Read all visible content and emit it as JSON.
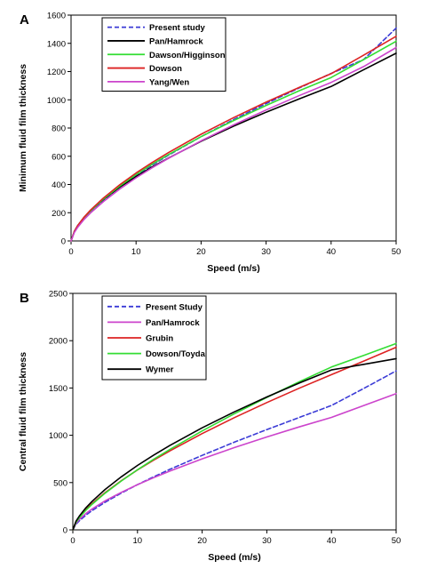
{
  "chart_data": [
    {
      "type": "line",
      "panel_label": "A",
      "xlabel": "Speed (m/s)",
      "ylabel": "Minimum fluid film thickness",
      "xlim": [
        0,
        50
      ],
      "ylim": [
        0,
        1600
      ],
      "xticks": [
        0,
        10,
        20,
        30,
        40,
        50
      ],
      "yticks": [
        0,
        200,
        400,
        600,
        800,
        1000,
        1200,
        1400,
        1600
      ],
      "grid": false,
      "legend_position": "top-left",
      "x": [
        0,
        0.5,
        1,
        2,
        3,
        5,
        7.5,
        10,
        12.5,
        15,
        20,
        25,
        30,
        35,
        40,
        45,
        50
      ],
      "series": [
        {
          "name": "Present study",
          "color": "#3b3bd6",
          "style": "dashed",
          "values": [
            0,
            63,
            100,
            158,
            207,
            291,
            382,
            463,
            538,
            608,
            739,
            860,
            973,
            1082,
            1187,
            1285,
            1508
          ]
        },
        {
          "name": "Pan/Hamrock",
          "color": "#000000",
          "style": "solid",
          "values": [
            0,
            68,
            107,
            167,
            215,
            295,
            381,
            456,
            525,
            588,
            706,
            813,
            912,
            1005,
            1094,
            1213,
            1330
          ]
        },
        {
          "name": "Dawson/Higginson",
          "color": "#33dd33",
          "style": "solid",
          "values": [
            0,
            66,
            105,
            165,
            214,
            298,
            389,
            470,
            544,
            612,
            739,
            853,
            960,
            1062,
            1158,
            1285,
            1415
          ]
        },
        {
          "name": "Dowson",
          "color": "#dd2222",
          "style": "solid",
          "values": [
            0,
            67,
            107,
            168,
            219,
            305,
            398,
            481,
            556,
            626,
            756,
            874,
            983,
            1086,
            1185,
            1316,
            1450
          ]
        },
        {
          "name": "Yang/Wen",
          "color": "#cc44cc",
          "style": "solid",
          "values": [
            0,
            60,
            95,
            152,
            199,
            280,
            368,
            447,
            519,
            586,
            709,
            822,
            928,
            1028,
            1123,
            1235,
            1370
          ]
        }
      ]
    },
    {
      "type": "line",
      "panel_label": "B",
      "xlabel": "Speed (m/s)",
      "ylabel": "Central fluid film thickness",
      "xlim": [
        0,
        50
      ],
      "ylim": [
        0,
        2500
      ],
      "xticks": [
        0,
        10,
        20,
        30,
        40,
        50
      ],
      "yticks": [
        0,
        500,
        1000,
        1500,
        2000,
        2500
      ],
      "grid": false,
      "legend_position": "top-left",
      "x": [
        0,
        0.5,
        1,
        2,
        3,
        5,
        7.5,
        10,
        12.5,
        15,
        20,
        25,
        30,
        35,
        40,
        45,
        50
      ],
      "series": [
        {
          "name": "Present Study",
          "color": "#3b3bd6",
          "style": "dashed",
          "values": [
            0,
            60,
            96,
            155,
            205,
            292,
            389,
            478,
            561,
            640,
            788,
            928,
            1060,
            1188,
            1315,
            1495,
            1680
          ]
        },
        {
          "name": "Pan/Hamrock",
          "color": "#cc44cc",
          "style": "solid",
          "values": [
            0,
            70,
            110,
            172,
            222,
            307,
            397,
            478,
            552,
            621,
            751,
            870,
            982,
            1088,
            1189,
            1315,
            1440
          ]
        },
        {
          "name": "Grubin",
          "color": "#dd2222",
          "style": "solid",
          "values": [
            0,
            85,
            135,
            214,
            280,
            395,
            520,
            633,
            737,
            835,
            1018,
            1187,
            1346,
            1497,
            1641,
            1785,
            1930
          ]
        },
        {
          "name": "Dowson/Toyda",
          "color": "#33dd33",
          "style": "solid",
          "values": [
            0,
            80,
            129,
            206,
            272,
            388,
            517,
            635,
            746,
            850,
            1046,
            1228,
            1400,
            1565,
            1722,
            1845,
            1970
          ]
        },
        {
          "name": "Wymer",
          "color": "#000000",
          "style": "solid",
          "values": [
            0,
            92,
            146,
            232,
            303,
            428,
            561,
            681,
            790,
            892,
            1079,
            1248,
            1405,
            1552,
            1691,
            1750,
            1810
          ]
        }
      ]
    }
  ]
}
